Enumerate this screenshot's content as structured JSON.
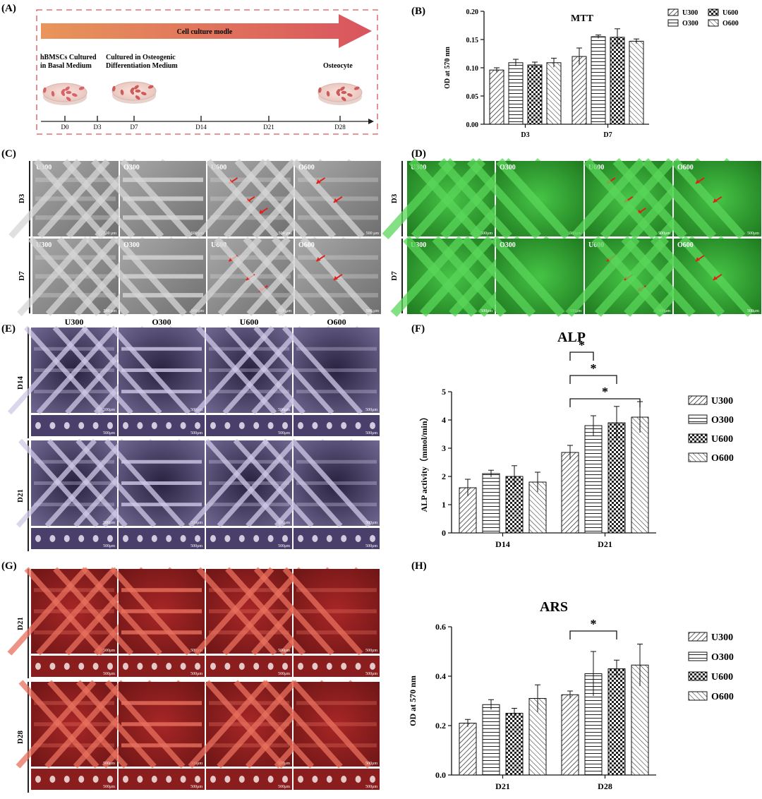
{
  "panels": {
    "A": "(A)",
    "B": "(B)",
    "C": "(C)",
    "D": "(D)",
    "E": "(E)",
    "F": "(F)",
    "G": "(G)",
    "H": "(H)"
  },
  "timeline": {
    "arrow_label": "Cell culture modle",
    "stage1": [
      "hBMSCs Cultured",
      "in Basal Medium"
    ],
    "stage2": [
      "Cultured in Osteogenic",
      "Differentiation Medium"
    ],
    "stage3": "Osteocyte",
    "days": [
      "D0",
      "D3",
      "D7",
      "D14",
      "D21",
      "D28"
    ]
  },
  "micro": {
    "groups": [
      "U300",
      "O300",
      "U600",
      "O600"
    ],
    "cd_rows": [
      "D3",
      "D7"
    ],
    "e_rows": [
      "D14",
      "D21"
    ],
    "g_rows": [
      "D21",
      "D28"
    ],
    "scale": "500μm",
    "sem_scale": "500 μm"
  },
  "colors": {
    "sem": "#8f8f8f",
    "fluor": "#2aa82a",
    "alp_stain": "#3a2e56",
    "ars_stain": "#b6302c",
    "arrow": "#e0201a",
    "timeline_start": "#e8955a",
    "timeline_end": "#d9545e"
  },
  "chart_data": [
    {
      "panel": "B",
      "type": "bar",
      "title": "MTT",
      "ylabel": "OD at 570 nm",
      "xlabel": "",
      "categories": [
        "D3",
        "D7"
      ],
      "ylim": [
        0,
        0.2
      ],
      "yticks": [
        "0.00",
        "0.05",
        "0.10",
        "0.15",
        "0.20"
      ],
      "legend_position": "top-right",
      "series": [
        {
          "name": "U300",
          "values": [
            0.096,
            0.12
          ],
          "errors": [
            0.004,
            0.015
          ],
          "pattern": "diag"
        },
        {
          "name": "O300",
          "values": [
            0.109,
            0.155
          ],
          "errors": [
            0.006,
            0.003
          ],
          "pattern": "horiz"
        },
        {
          "name": "U600",
          "values": [
            0.105,
            0.154
          ],
          "errors": [
            0.005,
            0.015
          ],
          "pattern": "check"
        },
        {
          "name": "O600",
          "values": [
            0.109,
            0.147
          ],
          "errors": [
            0.008,
            0.004
          ],
          "pattern": "diagrev"
        }
      ],
      "significance": []
    },
    {
      "panel": "F",
      "type": "bar",
      "title": "ALP",
      "ylabel": "ALP activity（mmol/min）",
      "xlabel": "",
      "categories": [
        "D14",
        "D21"
      ],
      "ylim": [
        0,
        5
      ],
      "yticks": [
        "0",
        "1",
        "2",
        "3",
        "4",
        "5"
      ],
      "legend_position": "right",
      "series": [
        {
          "name": "U300",
          "values": [
            1.6,
            2.85
          ],
          "errors": [
            0.3,
            0.25
          ],
          "pattern": "diag"
        },
        {
          "name": "O300",
          "values": [
            2.1,
            3.8
          ],
          "errors": [
            0.12,
            0.35
          ],
          "pattern": "horiz"
        },
        {
          "name": "U600",
          "values": [
            2.0,
            3.9
          ],
          "errors": [
            0.38,
            0.58
          ],
          "pattern": "check"
        },
        {
          "name": "O600",
          "values": [
            1.8,
            4.1
          ],
          "errors": [
            0.35,
            0.55
          ],
          "pattern": "diagrev"
        }
      ],
      "significance": [
        {
          "cat": 1,
          "from": 0,
          "to": 1,
          "label": "*"
        },
        {
          "cat": 1,
          "from": 0,
          "to": 2,
          "label": "*"
        },
        {
          "cat": 1,
          "from": 0,
          "to": 3,
          "label": "*"
        }
      ]
    },
    {
      "panel": "H",
      "type": "bar",
      "title": "ARS",
      "ylabel": "OD at 570 nm",
      "xlabel": "",
      "categories": [
        "D21",
        "D28"
      ],
      "ylim": [
        0,
        0.6
      ],
      "yticks": [
        "0.0",
        "0.2",
        "0.4",
        "0.6"
      ],
      "legend_position": "right",
      "series": [
        {
          "name": "U300",
          "values": [
            0.21,
            0.325
          ],
          "errors": [
            0.015,
            0.015
          ],
          "pattern": "diag"
        },
        {
          "name": "O300",
          "values": [
            0.285,
            0.41
          ],
          "errors": [
            0.02,
            0.09
          ],
          "pattern": "horiz"
        },
        {
          "name": "U600",
          "values": [
            0.25,
            0.43
          ],
          "errors": [
            0.02,
            0.035
          ],
          "pattern": "check"
        },
        {
          "name": "O600",
          "values": [
            0.31,
            0.445
          ],
          "errors": [
            0.055,
            0.085
          ],
          "pattern": "diagrev"
        }
      ],
      "significance": [
        {
          "cat": 1,
          "from": 0,
          "to": 2,
          "label": "*"
        }
      ]
    }
  ]
}
